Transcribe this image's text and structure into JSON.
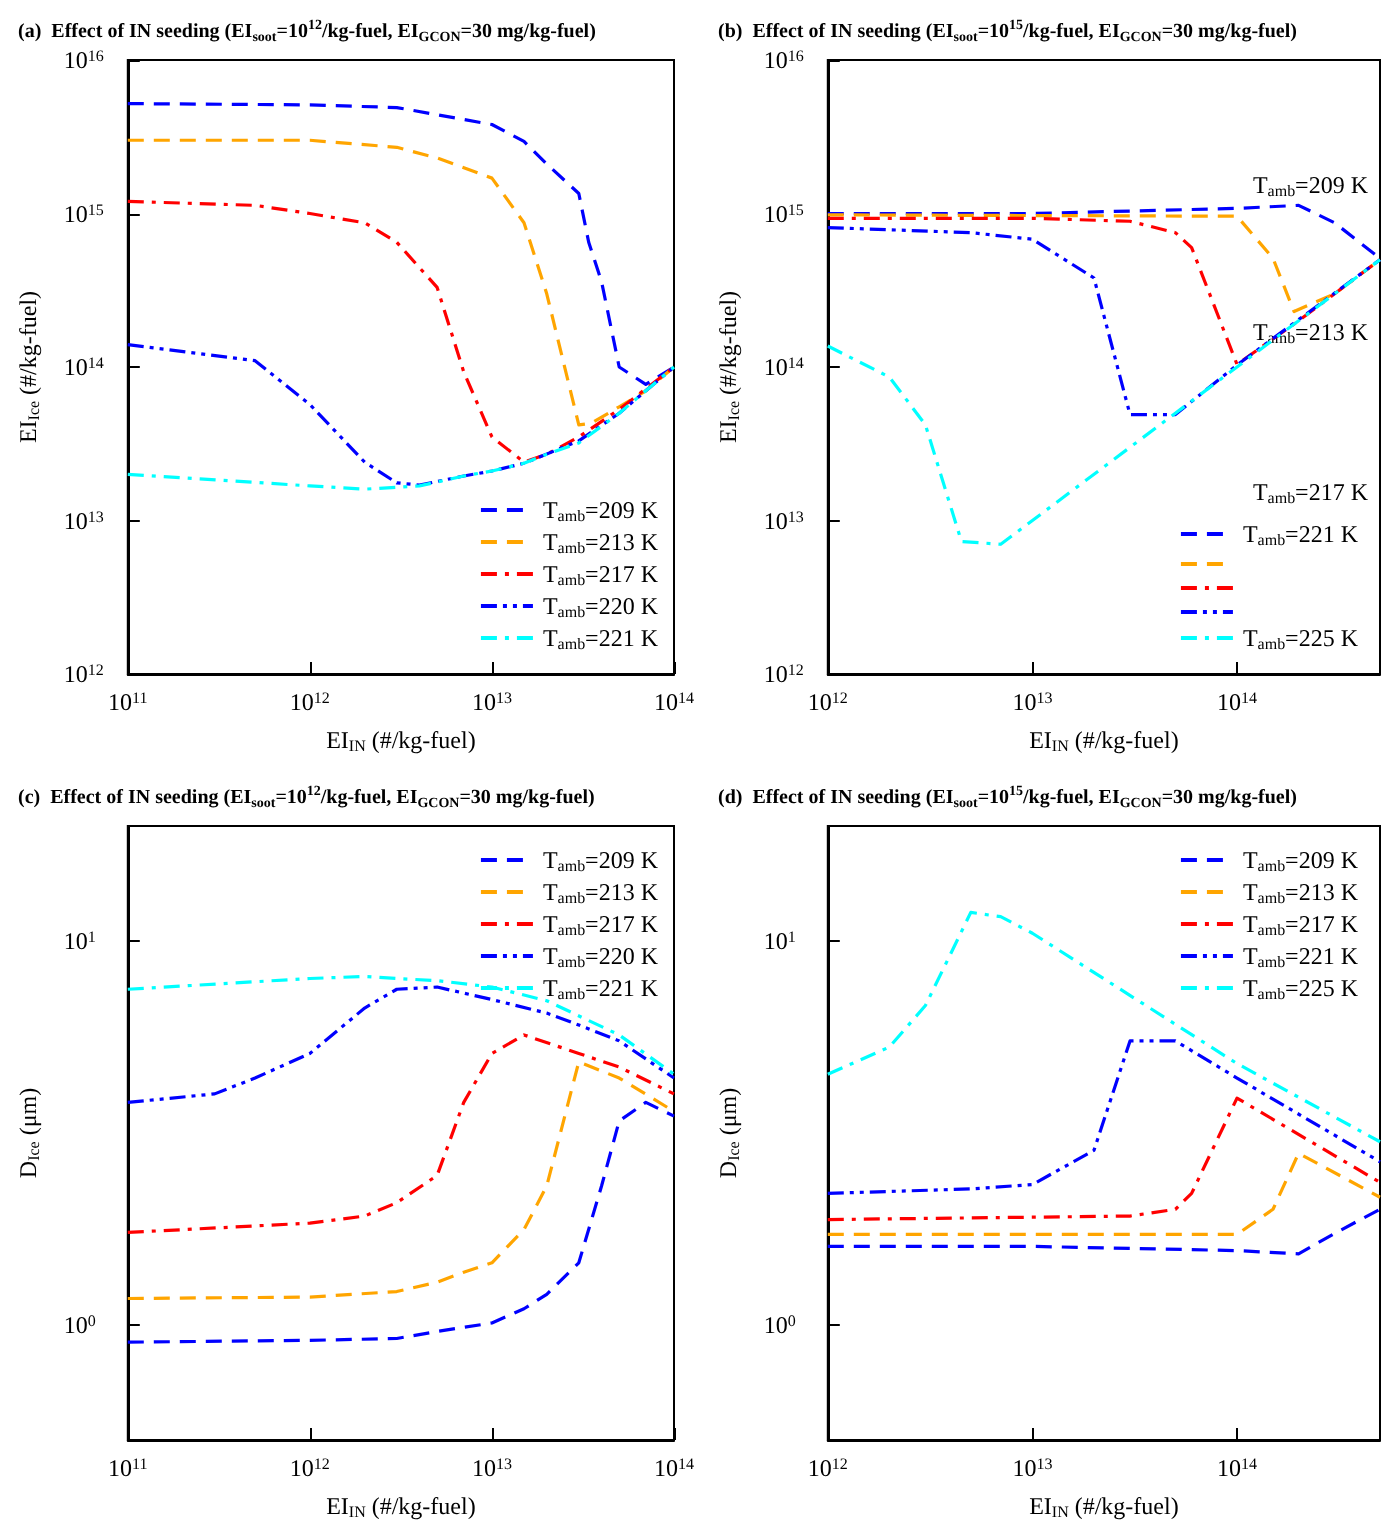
{
  "chart_data": [
    {
      "type": "line",
      "title": "(a)  Effect of IN seeding (EI$_{soot}$=10$^{12}$/kg-fuel, EI$_{GCON}$=30 mg/kg-fuel)",
      "xlabel": "EI$_{IN}$ (#/kg-fuel)",
      "ylabel": "EI$_{Ice}$ (#/kg-fuel)",
      "log": "xy",
      "grid": false,
      "legend": "bottom right",
      "xlim": [
        100000000000.0,
        100000000000000.0
      ],
      "xticks": [
        {
          "value": 100000000000.0,
          "label": "10$^{11}$"
        },
        {
          "value": 1000000000000.0,
          "label": "10$^{12}$"
        },
        {
          "value": 10000000000000.0,
          "label": "10$^{13}$"
        },
        {
          "value": 100000000000000.0,
          "label": "10$^{14}$"
        }
      ],
      "ylim": [
        1000000000000.0,
        1e+16
      ],
      "yticks": [
        {
          "value": 1000000000000.0,
          "label": "10$^{12}$"
        },
        {
          "value": 10000000000000.0,
          "label": "10$^{13}$"
        },
        {
          "value": 100000000000000.0,
          "label": "10$^{14}$"
        },
        {
          "value": 1000000000000000.0,
          "label": "10$^{15}$"
        },
        {
          "value": 1e+16,
          "label": "10$^{16}$"
        }
      ],
      "series": [
        {
          "name": "T$_{amb}$=209 K",
          "color": "#0000ff",
          "line_style": "dashed",
          "x": [
            100000000000.0,
            1000000000000.0,
            3000000000000.0,
            5000000000000.0,
            10000000000000.0,
            15000000000000.0,
            20000000000000.0,
            30000000000000.0,
            34000000000000.0,
            40000000000000.0,
            50000000000000.0,
            70000000000000.0,
            100000000000000.0
          ],
          "values": [
            5200000000000000.0,
            5100000000000000.0,
            4900000000000000.0,
            4400000000000000.0,
            3800000000000000.0,
            2950000000000000.0,
            2100000000000000.0,
            1350000000000000.0,
            650000000000000.0,
            360000000000000.0,
            100000000000000.0,
            77000000000000.0,
            100000000000000.0
          ]
        },
        {
          "name": "T$_{amb}$=213 K",
          "color": "#ffa500",
          "line_style": "dashed",
          "x": [
            100000000000.0,
            1000000000000.0,
            3000000000000.0,
            5000000000000.0,
            10000000000000.0,
            15000000000000.0,
            20000000000000.0,
            30000000000000.0,
            35000000000000.0,
            50000000000000.0,
            70000000000000.0,
            100000000000000.0
          ],
          "values": [
            3000000000000000.0,
            3000000000000000.0,
            2700000000000000.0,
            2300000000000000.0,
            1700000000000000.0,
            870000000000000.0,
            300000000000000.0,
            42000000000000.0,
            43000000000000.0,
            55000000000000.0,
            70000000000000.0,
            100000000000000.0
          ]
        },
        {
          "name": "T$_{amb}$=217 K",
          "color": "#ff0000",
          "line_style": "dashdot",
          "x": [
            100000000000.0,
            500000000000.0,
            1000000000000.0,
            2000000000000.0,
            3000000000000.0,
            5000000000000.0,
            7000000000000.0,
            10000000000000.0,
            15000000000000.0,
            20000000000000.0,
            30000000000000.0,
            50000000000000.0,
            100000000000000.0
          ],
          "values": [
            1200000000000000.0,
            1130000000000000.0,
            1000000000000000.0,
            870000000000000.0,
            650000000000000.0,
            330000000000000.0,
            93000000000000.0,
            35000000000000.0,
            24000000000000.0,
            27000000000000.0,
            35000000000000.0,
            53000000000000.0,
            100000000000000.0
          ]
        },
        {
          "name": "T$_{amb}$=220 K",
          "color": "#0000ff",
          "line_style": "dashdotdot",
          "x": [
            100000000000.0,
            500000000000.0,
            1000000000000.0,
            2000000000000.0,
            3000000000000.0,
            4000000000000.0,
            7000000000000.0,
            10000000000000.0,
            15000000000000.0,
            30000000000000.0,
            50000000000000.0,
            100000000000000.0
          ],
          "values": [
            140000000000000.0,
            110000000000000.0,
            57000000000000.0,
            24000000000000.0,
            17600000000000.0,
            17000000000000.0,
            19500000000000.0,
            21000000000000.0,
            23600000000000.0,
            33000000000000.0,
            50000000000000.0,
            100000000000000.0
          ]
        },
        {
          "name": "T$_{amb}$=221 K",
          "color": "#00ffff",
          "line_style": "dashdot",
          "x": [
            100000000000.0,
            1000000000000.0,
            2000000000000.0,
            4000000000000.0,
            7000000000000.0,
            10000000000000.0,
            15000000000000.0,
            20000000000000.0,
            30000000000000.0,
            50000000000000.0,
            70000000000000.0,
            100000000000000.0
          ],
          "values": [
            20000000000000.0,
            16800000000000.0,
            16000000000000.0,
            16800000000000.0,
            19500000000000.0,
            21000000000000.0,
            23600000000000.0,
            27000000000000.0,
            32000000000000.0,
            50000000000000.0,
            70000000000000.0,
            100000000000000.0
          ]
        }
      ]
    },
    {
      "type": "line",
      "title": "(b)  Effect of IN seeding (EI$_{soot}$=10$^{15}$/kg-fuel, EI$_{GCON}$=30 mg/kg-fuel)",
      "xlabel": "EI$_{IN}$ (#/kg-fuel)",
      "ylabel": "EI$_{Ice}$ (#/kg-fuel)",
      "log": "xy",
      "grid": false,
      "legend": "bottom right",
      "annotations": [
        "T$_{amb}$=209 K",
        "T$_{amb}$=213 K",
        "T$_{amb}$=217 K"
      ],
      "xlim": [
        1000000000000.0,
        500000000000000.0
      ],
      "xticks": [
        {
          "value": 1000000000000.0,
          "label": "10$^{12}$"
        },
        {
          "value": 10000000000000.0,
          "label": "10$^{13}$"
        },
        {
          "value": 100000000000000.0,
          "label": "10$^{14}$"
        }
      ],
      "ylim": [
        1000000000000.0,
        1e+16
      ],
      "yticks": [
        {
          "value": 1000000000000.0,
          "label": "10$^{12}$"
        },
        {
          "value": 10000000000000.0,
          "label": "10$^{13}$"
        },
        {
          "value": 100000000000000.0,
          "label": "10$^{14}$"
        },
        {
          "value": 1000000000000000.0,
          "label": "10$^{15}$"
        },
        {
          "value": 1e+16,
          "label": "10$^{16}$"
        }
      ],
      "series": [
        {
          "name": "T$_{amb}$=221 K",
          "color": "#0000ff",
          "line_style": "dashed",
          "x": [
            1000000000000.0,
            10000000000000.0,
            100000000000000.0,
            200000000000000.0,
            300000000000000.0,
            500000000000000.0
          ],
          "values": [
            1000000000000000.0,
            1000000000000000.0,
            1080000000000000.0,
            1130000000000000.0,
            870000000000000.0,
            510000000000000.0
          ]
        },
        {
          "color": "#ffa500",
          "line_style": "dashed",
          "x": [
            1000000000000.0,
            100000000000000.0,
            150000000000000.0,
            190000000000000.0,
            300000000000000.0,
            500000000000000.0
          ],
          "values": [
            980000000000000.0,
            960000000000000.0,
            510000000000000.0,
            230000000000000.0,
            300000000000000.0,
            500000000000000.0
          ]
        },
        {
          "color": "#ff0000",
          "line_style": "dashdot",
          "x": [
            1000000000000.0,
            10000000000000.0,
            30000000000000.0,
            50000000000000.0,
            60000000000000.0,
            100000000000000.0,
            200000000000000.0,
            500000000000000.0
          ],
          "values": [
            930000000000000.0,
            930000000000000.0,
            890000000000000.0,
            750000000000000.0,
            600000000000000.0,
            104000000000000.0,
            200000000000000.0,
            500000000000000.0
          ]
        },
        {
          "color": "#0000ff",
          "line_style": "dashdotdot",
          "x": [
            1000000000000.0,
            5000000000000.0,
            10000000000000.0,
            20000000000000.0,
            30000000000000.0,
            50000000000000.0,
            100000000000000.0,
            500000000000000.0
          ],
          "values": [
            810000000000000.0,
            750000000000000.0,
            680000000000000.0,
            380000000000000.0,
            49000000000000.0,
            49000000000000.0,
            103000000000000.0,
            500000000000000.0
          ]
        },
        {
          "name": "T$_{amb}$=225 K",
          "color": "#00ffff",
          "line_style": "dashdot",
          "x": [
            1000000000000.0,
            2000000000000.0,
            3000000000000.0,
            4500000000000.0,
            7000000000000.0,
            10000000000000.0,
            30000000000000.0,
            100000000000000.0,
            500000000000000.0
          ],
          "values": [
            137000000000000.0,
            86000000000000.0,
            42000000000000.0,
            7300000000000.0,
            7000000000000.0,
            10000000000000.0,
            30000000000000.0,
            100000000000000.0,
            500000000000000.0
          ]
        }
      ]
    },
    {
      "type": "line",
      "title": "(c)  Effect of IN seeding (EI$_{soot}$=10$^{12}$/kg-fuel, EI$_{GCON}$=30 mg/kg-fuel)",
      "xlabel": "EI$_{IN}$ (#/kg-fuel)",
      "ylabel": "D$_{Ice}$ (μm)",
      "log": "xy",
      "grid": false,
      "legend": "top right",
      "xlim": [
        100000000000.0,
        100000000000000.0
      ],
      "xticks": [
        {
          "value": 100000000000.0,
          "label": "10$^{11}$"
        },
        {
          "value": 1000000000000.0,
          "label": "10$^{12}$"
        },
        {
          "value": 10000000000000.0,
          "label": "10$^{13}$"
        },
        {
          "value": 100000000000000.0,
          "label": "10$^{14}$"
        }
      ],
      "ylim": [
        0.5,
        20
      ],
      "yticks": [
        {
          "value": 1,
          "label": "10$^{0}$"
        },
        {
          "value": 10,
          "label": "10$^{1}$"
        }
      ],
      "series": [
        {
          "name": "T$_{amb}$=209 K",
          "color": "#0000ff",
          "line_style": "dashed",
          "x": [
            100000000000.0,
            1000000000000.0,
            3000000000000.0,
            5000000000000.0,
            10000000000000.0,
            15000000000000.0,
            20000000000000.0,
            30000000000000.0,
            40000000000000.0,
            50000000000000.0,
            70000000000000.0,
            100000000000000.0
          ],
          "values": [
            0.9,
            0.91,
            0.92,
            0.96,
            1.01,
            1.1,
            1.2,
            1.45,
            2.3,
            3.4,
            3.8,
            3.5
          ]
        },
        {
          "name": "T$_{amb}$=213 K",
          "color": "#ffa500",
          "line_style": "dashed",
          "x": [
            100000000000.0,
            1000000000000.0,
            3000000000000.0,
            5000000000000.0,
            7000000000000.0,
            10000000000000.0,
            15000000000000.0,
            20000000000000.0,
            30000000000000.0,
            50000000000000.0,
            100000000000000.0
          ],
          "values": [
            1.17,
            1.18,
            1.22,
            1.29,
            1.37,
            1.45,
            1.77,
            2.3,
            4.85,
            4.4,
            3.6
          ]
        },
        {
          "name": "T$_{amb}$=217 K",
          "color": "#ff0000",
          "line_style": "dashdot",
          "x": [
            100000000000.0,
            1000000000000.0,
            2000000000000.0,
            3000000000000.0,
            5000000000000.0,
            7000000000000.0,
            10000000000000.0,
            15000000000000.0,
            30000000000000.0,
            50000000000000.0,
            100000000000000.0
          ],
          "values": [
            1.74,
            1.84,
            1.92,
            2.08,
            2.45,
            3.8,
            5.1,
            5.7,
            5.1,
            4.7,
            4
          ]
        },
        {
          "name": "T$_{amb}$=220 K",
          "color": "#0000ff",
          "line_style": "dashdotdot",
          "x": [
            100000000000.0,
            300000000000.0,
            500000000000.0,
            1000000000000.0,
            2000000000000.0,
            3000000000000.0,
            5000000000000.0,
            10000000000000.0,
            20000000000000.0,
            30000000000000.0,
            50000000000000.0,
            100000000000000.0
          ],
          "values": [
            3.8,
            4,
            4.4,
            5.1,
            6.7,
            7.5,
            7.6,
            7.05,
            6.5,
            6.05,
            5.5,
            4.4
          ]
        },
        {
          "name": "T$_{amb}$=221 K",
          "color": "#00ffff",
          "line_style": "dashdot",
          "x": [
            100000000000.0,
            1000000000000.0,
            2000000000000.0,
            3000000000000.0,
            5000000000000.0,
            10000000000000.0,
            20000000000000.0,
            50000000000000.0,
            100000000000000.0
          ],
          "values": [
            7.5,
            8,
            8.1,
            8,
            7.9,
            7.6,
            7,
            5.7,
            4.5
          ]
        }
      ]
    },
    {
      "type": "line",
      "title": "(d)  Effect of IN seeding (EI$_{soot}$=10$^{15}$/kg-fuel, EI$_{GCON}$=30 mg/kg-fuel)",
      "xlabel": "EI$_{IN}$ (#/kg-fuel)",
      "ylabel": "D$_{Ice}$ (μm)",
      "log": "xy",
      "grid": false,
      "legend": "top right",
      "xlim": [
        1000000000000.0,
        500000000000000.0
      ],
      "xticks": [
        {
          "value": 1000000000000.0,
          "label": "10$^{12}$"
        },
        {
          "value": 10000000000000.0,
          "label": "10$^{13}$"
        },
        {
          "value": 100000000000000.0,
          "label": "10$^{14}$"
        }
      ],
      "ylim": [
        0.5,
        20
      ],
      "yticks": [
        {
          "value": 1,
          "label": "10$^{0}$"
        },
        {
          "value": 10,
          "label": "10$^{1}$"
        }
      ],
      "series": [
        {
          "name": "T$_{amb}$=209 K",
          "color": "#0000ff",
          "line_style": "dashed",
          "x": [
            1000000000000.0,
            10000000000000.0,
            100000000000000.0,
            200000000000000.0,
            300000000000000.0,
            500000000000000.0
          ],
          "values": [
            1.6,
            1.6,
            1.56,
            1.53,
            1.73,
            2
          ]
        },
        {
          "name": "T$_{amb}$=213 K",
          "color": "#ffa500",
          "line_style": "dashed",
          "x": [
            1000000000000.0,
            100000000000000.0,
            150000000000000.0,
            200000000000000.0,
            500000000000000.0
          ],
          "values": [
            1.72,
            1.72,
            2,
            2.8,
            2.15
          ]
        },
        {
          "name": "T$_{amb}$=217 K",
          "color": "#ff0000",
          "line_style": "dashdot",
          "x": [
            1000000000000.0,
            30000000000000.0,
            50000000000000.0,
            60000000000000.0,
            100000000000000.0,
            500000000000000.0
          ],
          "values": [
            1.88,
            1.92,
            2,
            2.2,
            3.9,
            2.35
          ]
        },
        {
          "name": "T$_{amb}$=221 K",
          "color": "#0000ff",
          "line_style": "dashdotdot",
          "x": [
            1000000000000.0,
            5000000000000.0,
            10000000000000.0,
            20000000000000.0,
            30000000000000.0,
            50000000000000.0,
            100000000000000.0,
            500000000000000.0
          ],
          "values": [
            2.2,
            2.26,
            2.32,
            2.85,
            5.5,
            5.5,
            4.4,
            2.66
          ]
        },
        {
          "name": "T$_{amb}$=225 K",
          "color": "#00ffff",
          "line_style": "dashdot",
          "x": [
            1000000000000.0,
            2000000000000.0,
            3000000000000.0,
            5000000000000.0,
            7000000000000.0,
            10000000000000.0,
            100000000000000.0,
            500000000000000.0
          ],
          "values": [
            4.5,
            5.3,
            6.8,
            11.9,
            11.6,
            10.5,
            4.8,
            3
          ]
        }
      ]
    }
  ]
}
